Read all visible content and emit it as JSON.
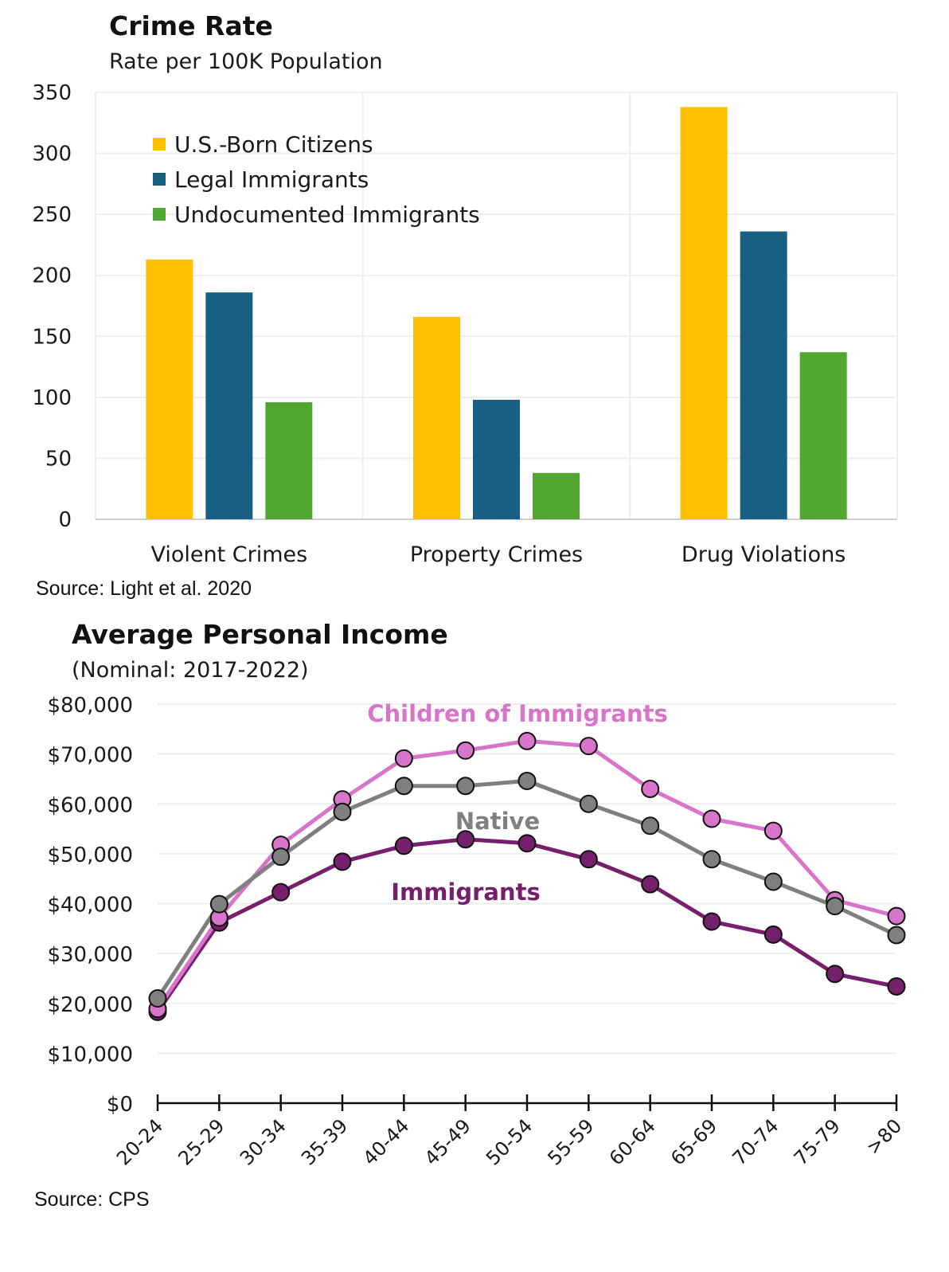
{
  "chart_data": [
    {
      "type": "bar",
      "title": "Crime Rate",
      "subtitle": "Rate per 100K Population",
      "xlabel": "",
      "ylabel": "",
      "ylim": [
        0,
        350
      ],
      "yticks": [
        "0",
        "50",
        "100",
        "150",
        "200",
        "250",
        "300",
        "350"
      ],
      "ytick_values": [
        0,
        50,
        100,
        150,
        200,
        250,
        300,
        350
      ],
      "grid": true,
      "legend_position": "top-left",
      "categories": [
        "Violent Crimes",
        "Property Crimes",
        "Drug Violations"
      ],
      "series": [
        {
          "name": "U.S.-Born Citizens",
          "color": "#FFC000",
          "values": [
            213,
            166,
            338
          ]
        },
        {
          "name": "Legal Immigrants",
          "color": "#175F83",
          "values": [
            186,
            98,
            236
          ]
        },
        {
          "name": "Undocumented Immigrants",
          "color": "#51A732",
          "values": [
            96,
            38,
            137
          ]
        }
      ],
      "source": "Source: Light et al. 2020"
    },
    {
      "type": "line",
      "title": "Average Personal Income",
      "subtitle": "(Nominal: 2017-2022)",
      "xlabel": "",
      "ylabel": "",
      "ylim": [
        0,
        80000
      ],
      "yticks": [
        "$0",
        "$10,000",
        "$20,000",
        "$30,000",
        "$40,000",
        "$50,000",
        "$60,000",
        "$70,000",
        "$80,000"
      ],
      "ytick_values": [
        0,
        10000,
        20000,
        30000,
        40000,
        50000,
        60000,
        70000,
        80000
      ],
      "grid": true,
      "legend_position": "inline-labels",
      "categories": [
        "20-24",
        "25-29",
        "30-34",
        "35-39",
        "40-44",
        "45-49",
        "50-54",
        "55-59",
        "60-64",
        "65-69",
        "70-74",
        "75-79",
        ">80"
      ],
      "series": [
        {
          "name": "Children of Immigrants",
          "color": "#D974CB",
          "values": [
            18900,
            37200,
            51800,
            60900,
            69100,
            70700,
            72600,
            71600,
            63000,
            57000,
            54600,
            40700,
            37500
          ]
        },
        {
          "name": "Native",
          "color": "#7F7F7F",
          "values": [
            21000,
            39900,
            49400,
            58400,
            63600,
            63600,
            64600,
            60000,
            55600,
            48900,
            44400,
            39500,
            33700
          ]
        },
        {
          "name": "Immigrants",
          "color": "#761F6C",
          "values": [
            18300,
            36200,
            42300,
            48400,
            51600,
            52900,
            52100,
            48900,
            43900,
            36400,
            33800,
            25900,
            23400
          ]
        }
      ],
      "annotations": [
        {
          "text": "Children of Immigrants",
          "series": "Children of Immigrants"
        },
        {
          "text": "Native",
          "series": "Native"
        },
        {
          "text": "Immigrants",
          "series": "Immigrants"
        }
      ],
      "source": "Source: CPS"
    }
  ]
}
